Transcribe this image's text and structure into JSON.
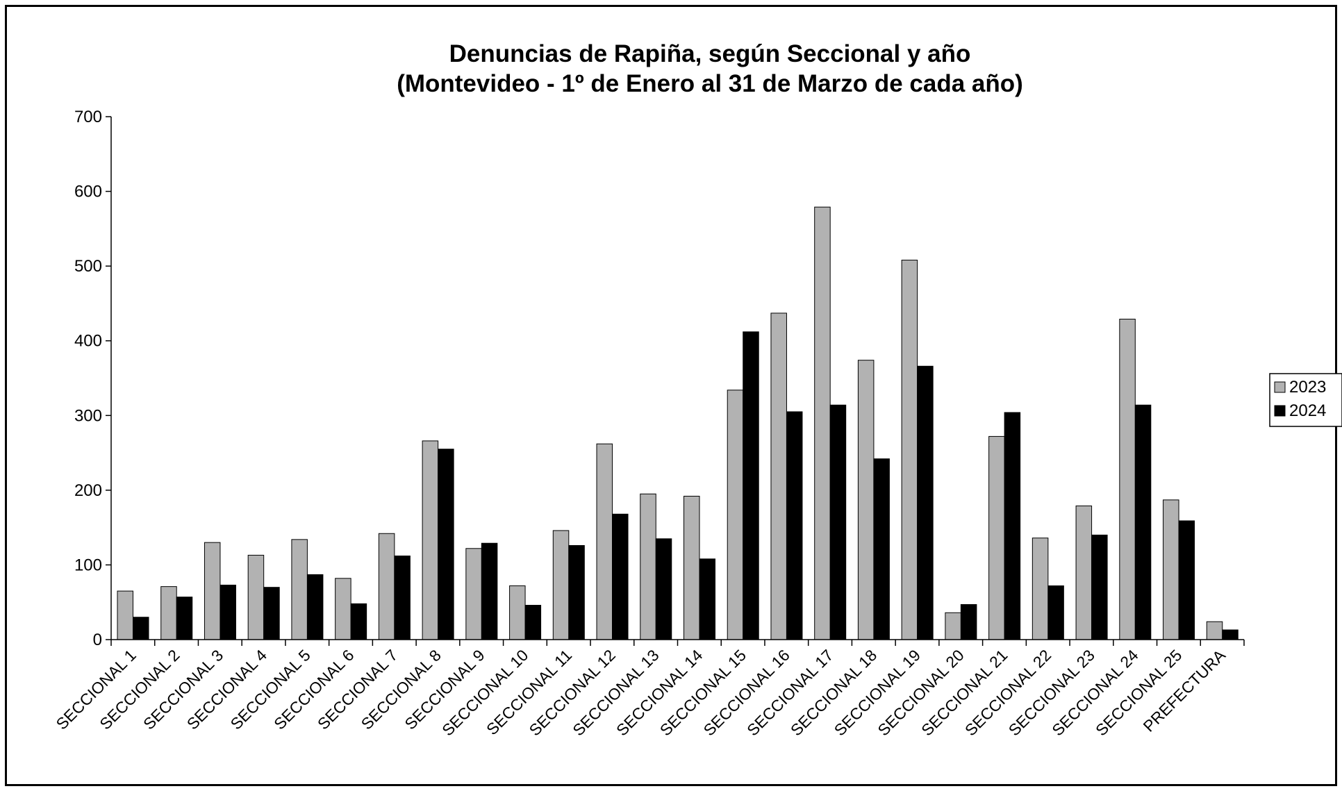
{
  "chart_data": {
    "type": "bar",
    "title": "Denuncias de Rapiña, según Seccional y año",
    "subtitle": "(Montevideo - 1º de Enero al 31 de Marzo de cada año)",
    "xlabel": "",
    "ylabel": "",
    "ylim": [
      0,
      700
    ],
    "yticks": [
      0,
      100,
      200,
      300,
      400,
      500,
      600,
      700
    ],
    "grid": false,
    "legend_position": "right",
    "categories": [
      "SECCIONAL 1",
      "SECCIONAL 2",
      "SECCIONAL 3",
      "SECCIONAL 4",
      "SECCIONAL 5",
      "SECCIONAL 6",
      "SECCIONAL 7",
      "SECCIONAL 8",
      "SECCIONAL 9",
      "SECCIONAL 10",
      "SECCIONAL 11",
      "SECCIONAL 12",
      "SECCIONAL 13",
      "SECCIONAL 14",
      "SECCIONAL 15",
      "SECCIONAL 16",
      "SECCIONAL 17",
      "SECCIONAL 18",
      "SECCIONAL 19",
      "SECCIONAL 20",
      "SECCIONAL 21",
      "SECCIONAL 22",
      "SECCIONAL 23",
      "SECCIONAL 24",
      "SECCIONAL 25",
      "PREFECTURA"
    ],
    "series": [
      {
        "name": "2023",
        "color": "#b2b2b2",
        "values": [
          65,
          71,
          130,
          113,
          134,
          82,
          142,
          266,
          122,
          72,
          146,
          262,
          195,
          192,
          334,
          437,
          579,
          374,
          508,
          36,
          272,
          136,
          179,
          429,
          187,
          24
        ]
      },
      {
        "name": "2024",
        "color": "#000000",
        "values": [
          30,
          57,
          73,
          70,
          87,
          48,
          112,
          255,
          129,
          46,
          126,
          168,
          135,
          108,
          412,
          305,
          314,
          242,
          366,
          47,
          304,
          72,
          140,
          314,
          159,
          13
        ]
      }
    ]
  }
}
